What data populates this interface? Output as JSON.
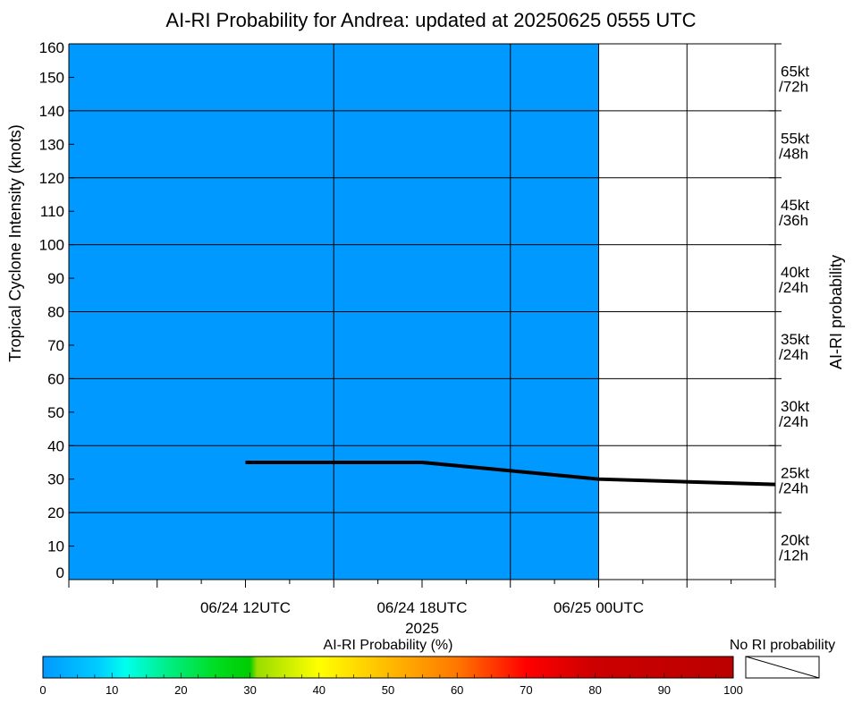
{
  "chart_data": {
    "type": "line",
    "title": "AI-RI Probability for Andrea: updated at 20250625 0555 UTC",
    "ylabel": "Tropical Cyclone Intensity (knots)",
    "right_axis_label": "AI-RI probability",
    "xlabel": "2025",
    "ylim": [
      0,
      160
    ],
    "y_ticks": [
      0,
      10,
      20,
      30,
      40,
      50,
      60,
      70,
      80,
      90,
      100,
      110,
      120,
      130,
      140,
      150,
      160
    ],
    "x_range_hours": [
      -6,
      18
    ],
    "x_labels": [
      {
        "hour": 0,
        "label": "06/24 12UTC"
      },
      {
        "hour": 6,
        "label": "06/24 18UTC"
      },
      {
        "hour": 12,
        "label": "06/25 00UTC"
      }
    ],
    "grid": true,
    "shaded_region": {
      "hour_start": -6,
      "hour_end": 12,
      "probability_percent": 0,
      "color": "#0099ff"
    },
    "series": [
      {
        "color": "#000000",
        "points": [
          {
            "hour": 0,
            "value": 35
          },
          {
            "hour": 6,
            "value": 35
          },
          {
            "hour": 12,
            "value": 30
          },
          {
            "hour": 18,
            "value": 28.4
          }
        ]
      }
    ],
    "ri_thresholds": [
      {
        "kt": "65kt",
        "window": "/72h",
        "value": 150
      },
      {
        "kt": "55kt",
        "window": "/48h",
        "value": 130
      },
      {
        "kt": "45kt",
        "window": "/36h",
        "value": 110
      },
      {
        "kt": "40kt",
        "window": "/24h",
        "value": 90
      },
      {
        "kt": "35kt",
        "window": "/24h",
        "value": 70
      },
      {
        "kt": "30kt",
        "window": "/24h",
        "value": 50
      },
      {
        "kt": "25kt",
        "window": "/24h",
        "value": 30
      },
      {
        "kt": "20kt",
        "window": "/12h",
        "value": 10
      }
    ],
    "right_axis_ticks": [
      20,
      40,
      60,
      80,
      100,
      120,
      140,
      160
    ],
    "colorbar": {
      "title": "AI-RI Probability (%)",
      "ticks": [
        0,
        10,
        20,
        30,
        40,
        50,
        60,
        70,
        80,
        90,
        100
      ],
      "stops": [
        {
          "p": 0,
          "color": "#0099ff"
        },
        {
          "p": 8,
          "color": "#00ccff"
        },
        {
          "p": 12,
          "color": "#00ffee"
        },
        {
          "p": 18,
          "color": "#00ee88"
        },
        {
          "p": 25,
          "color": "#00dd22"
        },
        {
          "p": 30,
          "color": "#00cc00"
        },
        {
          "p": 31,
          "color": "#99dd00"
        },
        {
          "p": 40,
          "color": "#ffff00"
        },
        {
          "p": 50,
          "color": "#ffbb00"
        },
        {
          "p": 60,
          "color": "#ff7700"
        },
        {
          "p": 70,
          "color": "#ff0000"
        },
        {
          "p": 80,
          "color": "#cc0000"
        },
        {
          "p": 100,
          "color": "#bb0000"
        }
      ],
      "no_ri_label": "No RI probability"
    }
  }
}
